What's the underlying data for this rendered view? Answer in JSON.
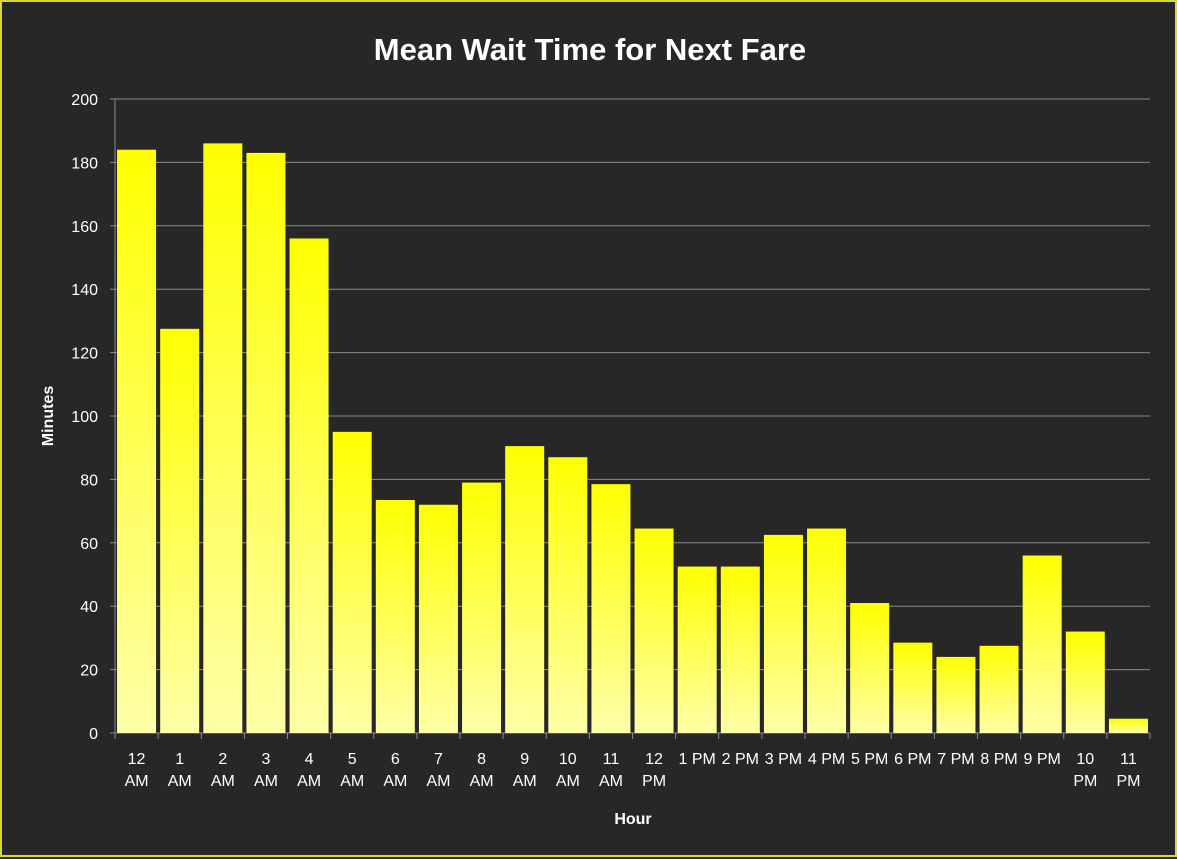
{
  "chart_data": {
    "type": "bar",
    "title": "Mean Wait Time for Next Fare",
    "xlabel": "Hour",
    "ylabel": "Minutes",
    "ylim": [
      0,
      200
    ],
    "yticks": [
      0,
      20,
      40,
      60,
      80,
      100,
      120,
      140,
      160,
      180,
      200
    ],
    "grid": true,
    "categories": [
      [
        "12",
        "AM"
      ],
      [
        "1",
        "AM"
      ],
      [
        "2",
        "AM"
      ],
      [
        "3",
        "AM"
      ],
      [
        "4",
        "AM"
      ],
      [
        "5",
        "AM"
      ],
      [
        "6",
        "AM"
      ],
      [
        "7",
        "AM"
      ],
      [
        "8",
        "AM"
      ],
      [
        "9",
        "AM"
      ],
      [
        "10",
        "AM"
      ],
      [
        "11",
        "AM"
      ],
      [
        "12",
        "PM"
      ],
      [
        "1 PM"
      ],
      [
        "2 PM"
      ],
      [
        "3 PM"
      ],
      [
        "4 PM"
      ],
      [
        "5 PM"
      ],
      [
        "6 PM"
      ],
      [
        "7 PM"
      ],
      [
        "8 PM"
      ],
      [
        "9 PM"
      ],
      [
        "10",
        "PM"
      ],
      [
        "11",
        "PM"
      ]
    ],
    "values": [
      184,
      127.5,
      186,
      183,
      156,
      95,
      73.5,
      72,
      79,
      90.5,
      87,
      78.5,
      64.5,
      52.5,
      52.5,
      62.5,
      64.5,
      41,
      28.5,
      24,
      27.5,
      56,
      32,
      4.5
    ],
    "colors": {
      "bar_top": "#ffff00",
      "bar_bottom": "#ffffa8",
      "background": "#272727",
      "grid": "#8a8a8a",
      "text": "#ffffff",
      "border": "#d8d83a"
    }
  }
}
